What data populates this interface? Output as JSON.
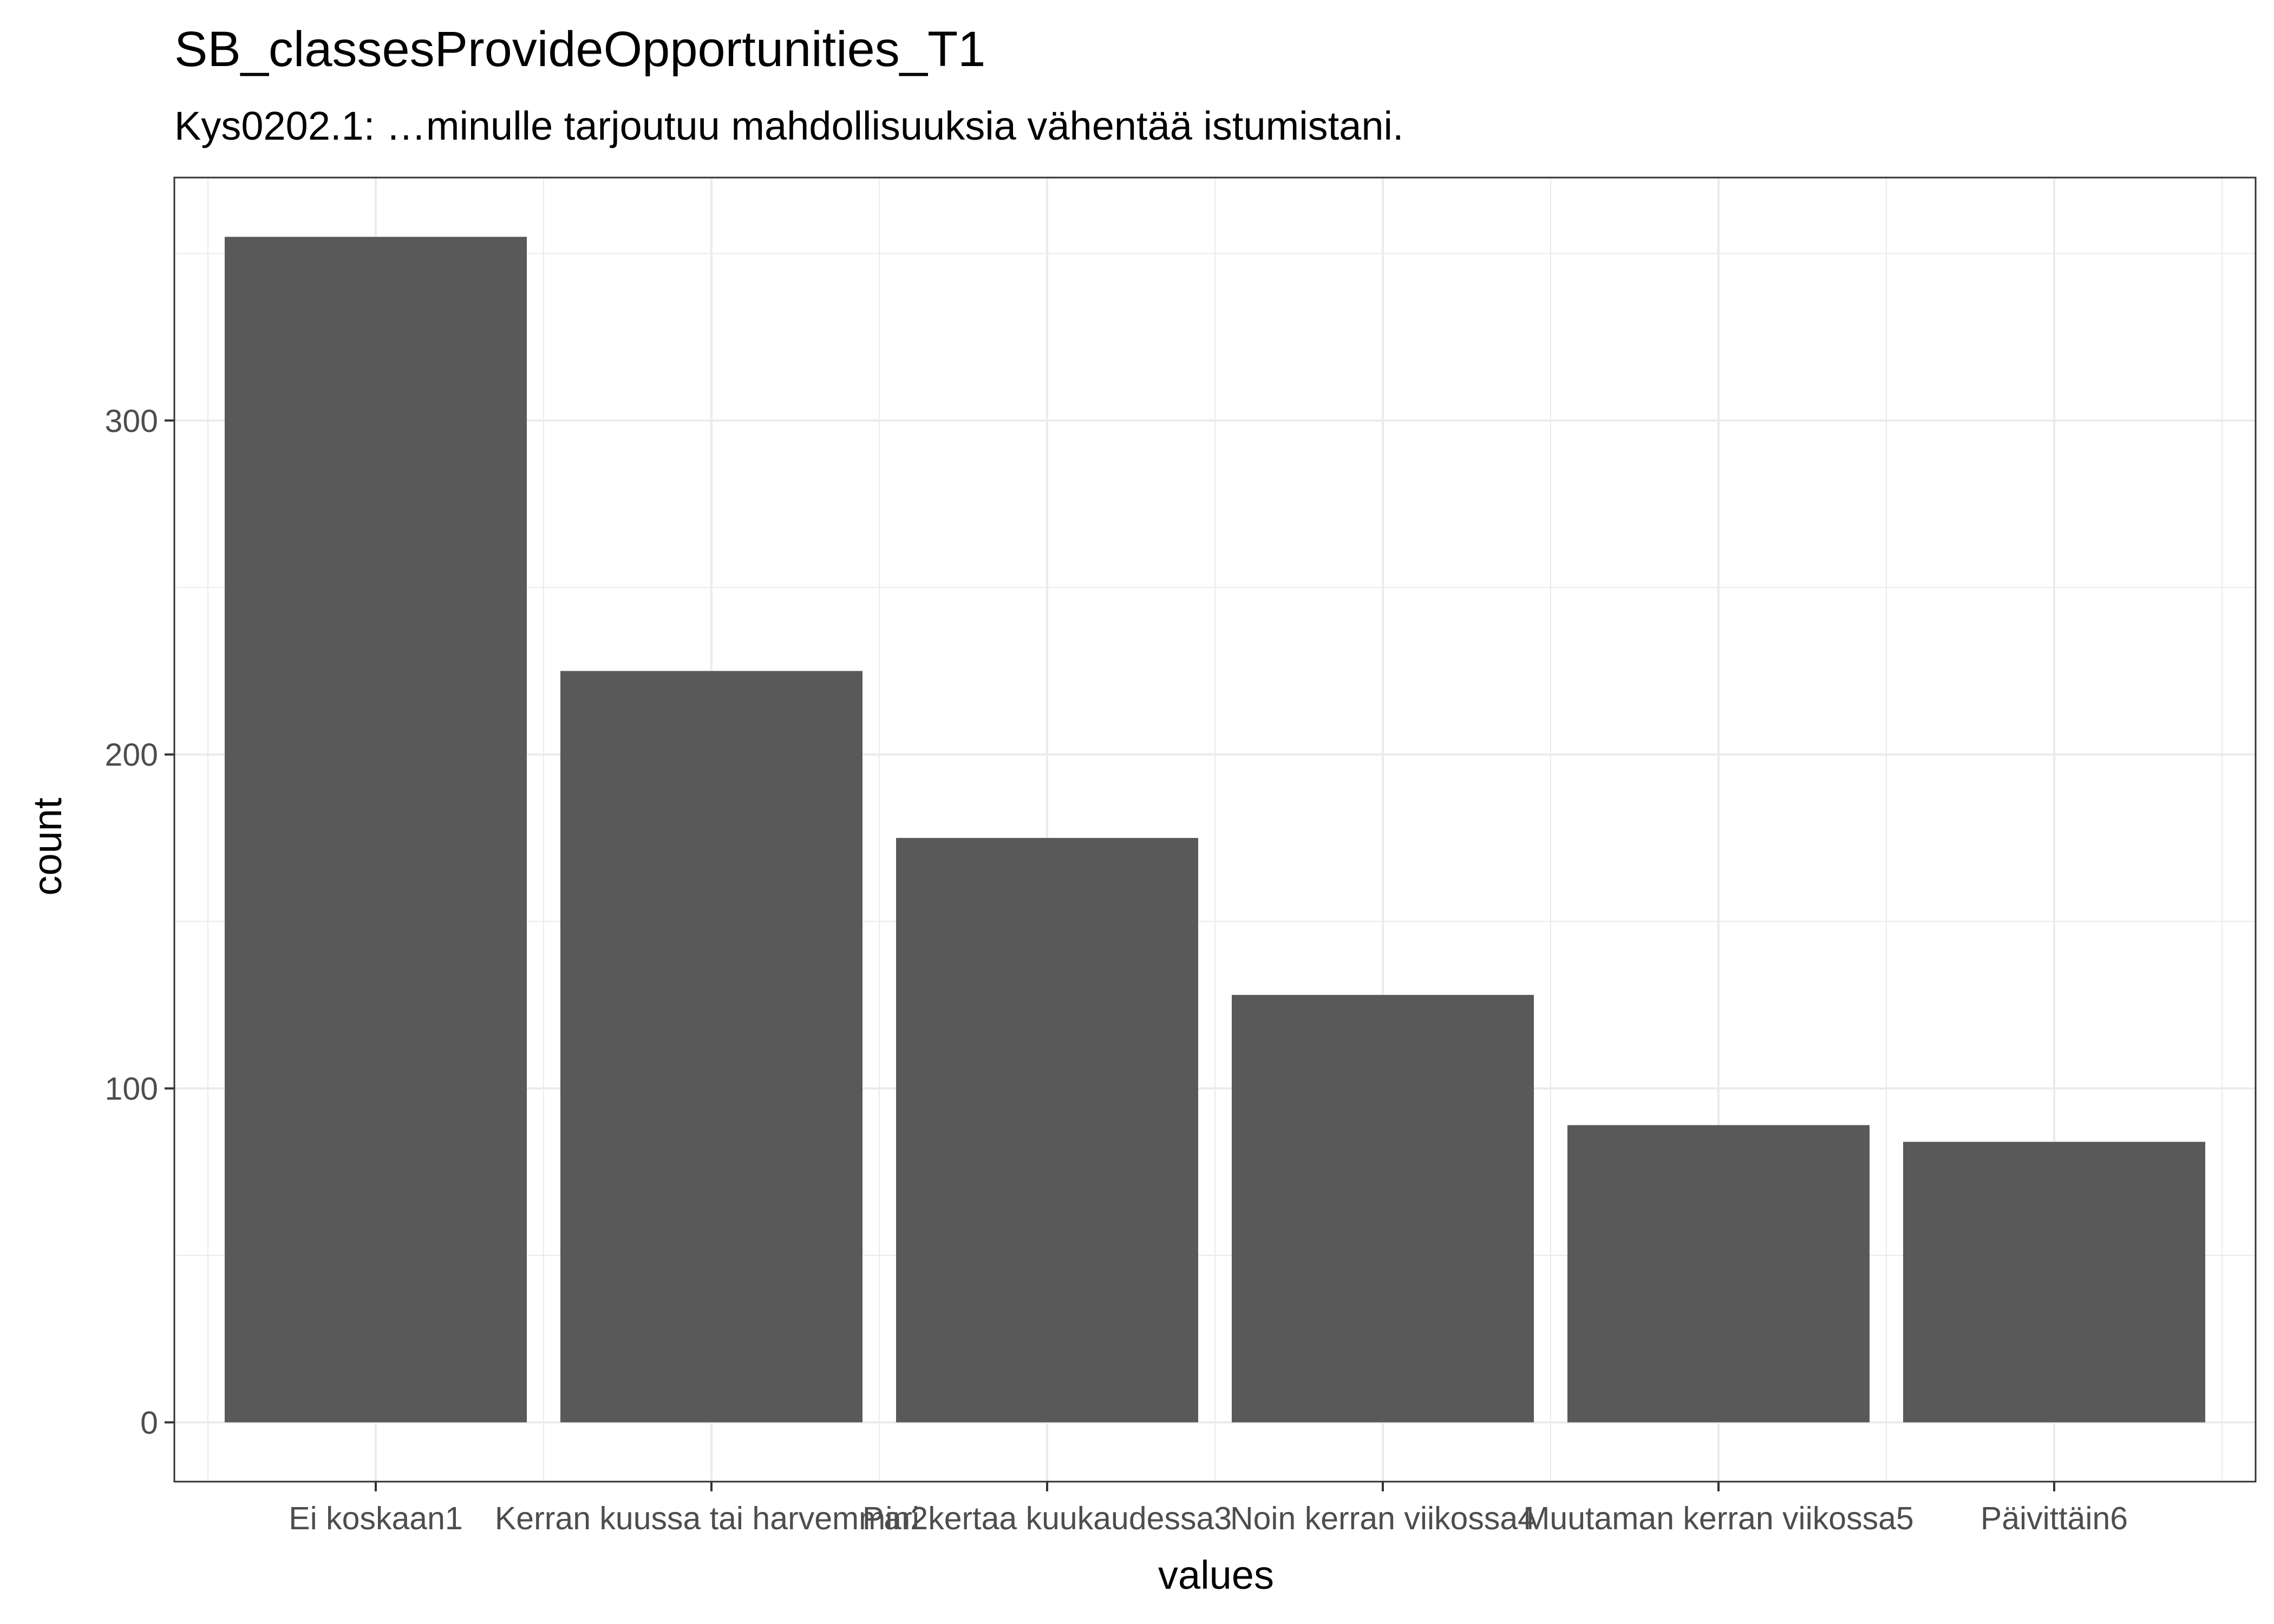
{
  "chart_data": {
    "type": "bar",
    "title": "SB_classesProvideOpportunities_T1",
    "subtitle": "Kys0202.1: …minulle tarjoutuu mahdollisuuksia vähentää istumistani.",
    "xlabel": "values",
    "ylabel": "count",
    "categories": [
      "Ei koskaan1",
      "Kerran kuussa tai harvemmin2",
      "Pari kertaa kuukaudessa3",
      "Noin kerran viikossa4",
      "Muutaman kerran viikossa5",
      "Päivittäin6"
    ],
    "values": [
      355,
      225,
      175,
      128,
      89,
      84
    ],
    "ylim": [
      -17.75,
      372.75
    ],
    "yticks": [
      0,
      100,
      200,
      300
    ],
    "ytick_labels": [
      "0",
      "100",
      "200",
      "300"
    ],
    "grid": true,
    "bar_color": "#595959",
    "grid_color": "#ebebeb",
    "panel_border_color": "#333333"
  }
}
